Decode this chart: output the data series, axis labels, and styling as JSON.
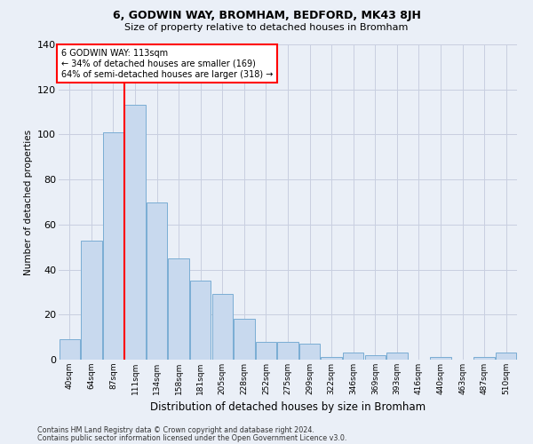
{
  "title_line1": "6, GODWIN WAY, BROMHAM, BEDFORD, MK43 8JH",
  "title_line2": "Size of property relative to detached houses in Bromham",
  "xlabel": "Distribution of detached houses by size in Bromham",
  "ylabel": "Number of detached properties",
  "categories": [
    "40sqm",
    "64sqm",
    "87sqm",
    "111sqm",
    "134sqm",
    "158sqm",
    "181sqm",
    "205sqm",
    "228sqm",
    "252sqm",
    "275sqm",
    "299sqm",
    "322sqm",
    "346sqm",
    "369sqm",
    "393sqm",
    "416sqm",
    "440sqm",
    "463sqm",
    "487sqm",
    "510sqm"
  ],
  "values": [
    9,
    53,
    101,
    113,
    70,
    45,
    35,
    29,
    18,
    8,
    8,
    7,
    1,
    3,
    2,
    3,
    0,
    1,
    0,
    1,
    3
  ],
  "bar_color": "#c8d9ee",
  "bar_edge_color": "#7aadd4",
  "red_line_x": 3,
  "annotation_text": "6 GODWIN WAY: 113sqm\n← 34% of detached houses are smaller (169)\n64% of semi-detached houses are larger (318) →",
  "annotation_box_color": "white",
  "annotation_box_edge": "red",
  "ylim": [
    0,
    140
  ],
  "yticks": [
    0,
    20,
    40,
    60,
    80,
    100,
    120,
    140
  ],
  "grid_color": "#c8cfe0",
  "background_color": "#eaeff7",
  "footer_line1": "Contains HM Land Registry data © Crown copyright and database right 2024.",
  "footer_line2": "Contains public sector information licensed under the Open Government Licence v3.0."
}
